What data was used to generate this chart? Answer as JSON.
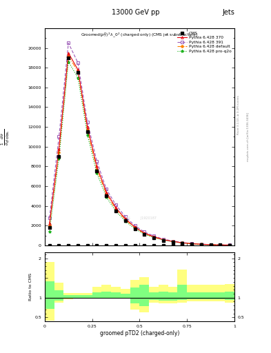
{
  "title_top": "13000 GeV pp",
  "title_right": "Jets",
  "xlabel": "groomed pTD2 (charged-only)",
  "ylabel_ratio": "Ratio to CMS",
  "x_bins": [
    0.0,
    0.05,
    0.1,
    0.15,
    0.2,
    0.25,
    0.3,
    0.35,
    0.4,
    0.45,
    0.5,
    0.55,
    0.6,
    0.65,
    0.7,
    0.75,
    0.8,
    0.85,
    0.9,
    0.95,
    1.0
  ],
  "cms_y": [
    1800,
    9000,
    19000,
    17500,
    11500,
    7500,
    5000,
    3500,
    2500,
    1700,
    1100,
    750,
    500,
    350,
    220,
    140,
    90,
    55,
    35,
    20
  ],
  "py370_y": [
    2200,
    9800,
    19500,
    17800,
    12000,
    8000,
    5400,
    3800,
    2700,
    1850,
    1250,
    870,
    580,
    400,
    260,
    170,
    110,
    65,
    40,
    24
  ],
  "py391_y": [
    2800,
    11000,
    20500,
    18500,
    12500,
    8500,
    5700,
    4100,
    2900,
    2000,
    1360,
    950,
    630,
    440,
    285,
    190,
    120,
    75,
    47,
    28
  ],
  "pydef_y": [
    2000,
    9400,
    19200,
    17600,
    11700,
    7700,
    5200,
    3650,
    2600,
    1780,
    1200,
    830,
    555,
    385,
    248,
    162,
    104,
    63,
    39,
    23
  ],
  "pyproq2o_y": [
    1400,
    8800,
    18600,
    17000,
    11200,
    7300,
    4900,
    3450,
    2450,
    1670,
    1130,
    790,
    530,
    370,
    235,
    153,
    98,
    60,
    37,
    22
  ],
  "ratio_yellow_lo": [
    0.42,
    0.88,
    0.96,
    0.97,
    0.97,
    0.97,
    0.97,
    0.97,
    0.97,
    0.7,
    0.62,
    0.88,
    0.85,
    0.85,
    0.88,
    0.9,
    0.9,
    0.9,
    0.9,
    0.88
  ],
  "ratio_yellow_hi": [
    1.9,
    1.38,
    1.12,
    1.12,
    1.12,
    1.28,
    1.32,
    1.28,
    1.22,
    1.45,
    1.52,
    1.28,
    1.32,
    1.28,
    1.72,
    1.32,
    1.32,
    1.32,
    1.32,
    1.35
  ],
  "ratio_green_lo": [
    0.72,
    0.92,
    0.98,
    0.99,
    0.99,
    0.99,
    0.99,
    0.99,
    0.99,
    0.85,
    0.78,
    0.94,
    0.92,
    0.92,
    0.94,
    0.96,
    0.96,
    0.96,
    0.96,
    0.94
  ],
  "ratio_green_hi": [
    1.42,
    1.18,
    1.07,
    1.07,
    1.07,
    1.13,
    1.16,
    1.13,
    1.1,
    1.25,
    1.32,
    1.13,
    1.16,
    1.13,
    1.32,
    1.13,
    1.13,
    1.13,
    1.13,
    1.16
  ],
  "color_py370": "#e8000d",
  "color_py391": "#9b59b6",
  "color_pydef": "#ff8000",
  "color_pyproq2o": "#00aa00",
  "color_cms": "black",
  "yticks": [
    0,
    2000,
    4000,
    6000,
    8000,
    10000,
    12000,
    14000,
    16000,
    18000,
    20000
  ],
  "ylim_main": [
    0,
    22000
  ],
  "ylim_ratio": [
    0.4,
    2.15
  ]
}
